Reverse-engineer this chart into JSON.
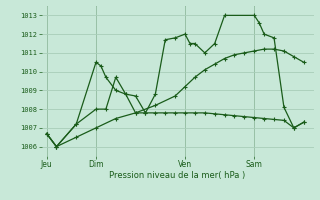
{
  "background_color": "#c8e8d8",
  "grid_color": "#a8cdb8",
  "line_color": "#1a5c1a",
  "title": "Pression niveau de la mer( hPa )",
  "ylim": [
    1005.5,
    1013.5
  ],
  "yticks": [
    1006,
    1007,
    1008,
    1009,
    1010,
    1011,
    1012,
    1013
  ],
  "x_tick_labels": [
    "Jeu",
    "Dim",
    "Ven",
    "Sam"
  ],
  "x_tick_positions": [
    0,
    5,
    14,
    21
  ],
  "series1_x": [
    0,
    1,
    3,
    5,
    5.5,
    6,
    7,
    8,
    9,
    10,
    11,
    12,
    13,
    14,
    14.5,
    15,
    16,
    17,
    18,
    21,
    21.5,
    22,
    23,
    24,
    25,
    26
  ],
  "series1_y": [
    1006.7,
    1006.0,
    1007.2,
    1010.5,
    1010.3,
    1009.7,
    1009.0,
    1008.8,
    1008.7,
    1007.8,
    1008.8,
    1011.7,
    1011.8,
    1012.0,
    1011.5,
    1011.5,
    1011.0,
    1011.5,
    1013.0,
    1013.0,
    1012.6,
    1012.0,
    1011.8,
    1008.1,
    1007.0,
    1007.3
  ],
  "series2_x": [
    0,
    1,
    3,
    5,
    6,
    7,
    8,
    9,
    10,
    11,
    12,
    13,
    14,
    15,
    16,
    17,
    18,
    19,
    20,
    21,
    22,
    23,
    24,
    25,
    26
  ],
  "series2_y": [
    1006.7,
    1006.0,
    1007.2,
    1008.0,
    1008.0,
    1009.7,
    1008.8,
    1007.8,
    1007.8,
    1007.8,
    1007.8,
    1007.8,
    1007.8,
    1007.8,
    1007.8,
    1007.75,
    1007.7,
    1007.65,
    1007.6,
    1007.55,
    1007.5,
    1007.45,
    1007.4,
    1007.0,
    1007.3
  ],
  "series3_x": [
    0,
    1,
    3,
    5,
    7,
    9,
    11,
    13,
    14,
    15,
    16,
    17,
    18,
    19,
    20,
    21,
    22,
    23,
    24,
    25,
    26
  ],
  "series3_y": [
    1006.7,
    1006.0,
    1006.5,
    1007.0,
    1007.5,
    1007.8,
    1008.2,
    1008.7,
    1009.2,
    1009.7,
    1010.1,
    1010.4,
    1010.7,
    1010.9,
    1011.0,
    1011.1,
    1011.2,
    1011.2,
    1011.1,
    1010.8,
    1010.5
  ],
  "xlim": [
    -0.5,
    27
  ]
}
